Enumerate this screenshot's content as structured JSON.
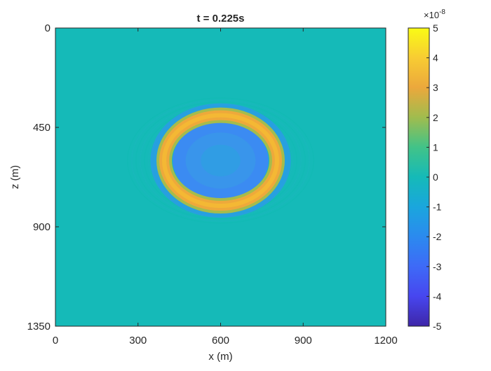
{
  "chart_data": {
    "type": "heatmap",
    "title": "t = 0.225s",
    "xlabel": "x (m)",
    "ylabel": "z (m)",
    "xlim": [
      0,
      1200
    ],
    "zlim": [
      0,
      1350
    ],
    "z_axis_direction": "down",
    "xticks": [
      0,
      300,
      600,
      900,
      1200
    ],
    "xtick_labels": [
      "0",
      "300",
      "600",
      "900",
      "1200"
    ],
    "zticks": [
      0,
      450,
      900,
      1350
    ],
    "ztick_labels": [
      "0",
      "450",
      "900",
      "1350"
    ],
    "colormap": "parula",
    "clim": [
      -5,
      5
    ],
    "colorbar_multiplier": "×10",
    "colorbar_exponent": "-8",
    "colorbar_ticks": [
      5,
      4,
      3,
      2,
      1,
      0,
      -1,
      -2,
      -3,
      -4,
      -5
    ],
    "colorbar_tick_labels": [
      "5",
      "4",
      "3",
      "2",
      "1",
      "0",
      "-1",
      "-2",
      "-3",
      "-4",
      "-5"
    ],
    "wavefront": {
      "center_x": 600,
      "center_z": 600,
      "radius_x": 205,
      "radius_z": 205,
      "peak_amplitude": 3.5,
      "trough_amplitude": -1.3
    },
    "background_value": 0
  }
}
